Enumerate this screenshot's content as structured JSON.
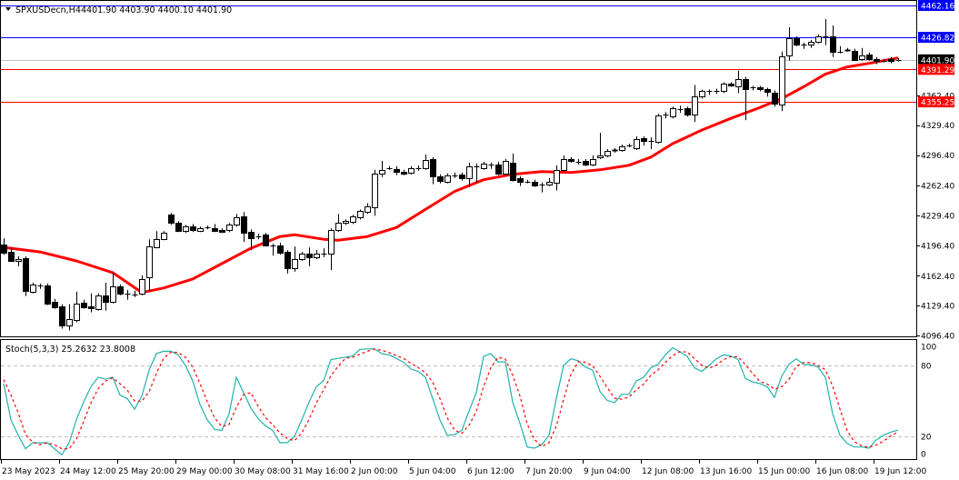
{
  "header": {
    "symbol": "SPXUSDecn,H4",
    "ohlc_text": "4401.90 4403.90 4400.10 4401.90",
    "menu_icon": "triangle-down-icon"
  },
  "indicator_header": {
    "label": "Stoch(5,3,3) 25.2632 23.8008"
  },
  "chart_data": [
    {
      "type": "candlestick",
      "symbol": "SPXUSDecn",
      "timeframe": "H4",
      "ylim": [
        4096.4,
        4470
      ],
      "y_ticks": [
        "4362.40",
        "4329.40",
        "4296.40",
        "4262.40",
        "4229.40",
        "4196.40",
        "4162.40",
        "4129.40",
        "4096.40"
      ],
      "y_tick_values": [
        4362.4,
        4329.4,
        4296.4,
        4262.4,
        4229.4,
        4196.4,
        4162.4,
        4129.4,
        4096.4
      ],
      "x_labels": [
        "23 May 2023",
        "24 May 12:00",
        "25 May 20:00",
        "29 May 00:00",
        "30 May 08:00",
        "31 May 16:00",
        "2 Jun 00:00",
        "5 Jun 04:00",
        "6 Jun 12:00",
        "7 Jun 20:00",
        "9 Jun 04:00",
        "12 Jun 08:00",
        "13 Jun 16:00",
        "15 Jun 00:00",
        "16 Jun 08:00",
        "19 Jun 12:00"
      ],
      "x_label_every_n_bars": 8,
      "colors": {
        "bull_body": "#ffffff",
        "bear_body": "#000000",
        "outline": "#000000",
        "ma": "#ff0000",
        "support": "#ff0000",
        "resistance": "#0000ff",
        "current": "#c0c0c0"
      },
      "horizontal_lines": [
        {
          "value": 4462.16,
          "label": "4462.16",
          "color": "#0000ff"
        },
        {
          "value": 4426.82,
          "label": "4426.82",
          "color": "#0000ff"
        },
        {
          "value": 4401.9,
          "label": "4401.90",
          "color": "#c0c0c0",
          "label_bg": "#000000"
        },
        {
          "value": 4391.29,
          "label": "4391.29",
          "color": "#ff0000"
        },
        {
          "value": 4355.25,
          "label": "4355.25",
          "color": "#ff0000"
        }
      ],
      "ohlc": [
        [
          4197,
          4204,
          4186,
          4188
        ],
        [
          4189,
          4194,
          4178,
          4179
        ],
        [
          4179,
          4184,
          4173,
          4181
        ],
        [
          4182,
          4184,
          4140,
          4146
        ],
        [
          4145,
          4155,
          4143,
          4153
        ],
        [
          4152,
          4154,
          4148,
          4152
        ],
        [
          4152,
          4154,
          4130,
          4132
        ],
        [
          4134,
          4137,
          4126,
          4128
        ],
        [
          4129,
          4131,
          4104,
          4108
        ],
        [
          4108,
          4131,
          4102,
          4115
        ],
        [
          4114,
          4145,
          4111,
          4132
        ],
        [
          4133,
          4136,
          4126,
          4128
        ],
        [
          4129,
          4143,
          4122,
          4127
        ],
        [
          4126,
          4143,
          4124,
          4141
        ],
        [
          4141,
          4155,
          4124,
          4134
        ],
        [
          4134,
          4166,
          4132,
          4151
        ],
        [
          4151,
          4153,
          4141,
          4143
        ],
        [
          4143,
          4147,
          4136,
          4143
        ],
        [
          4142,
          4146,
          4139,
          4142
        ],
        [
          4143,
          4163,
          4141,
          4159
        ],
        [
          4161,
          4203,
          4146,
          4195
        ],
        [
          4194,
          4212,
          4193,
          4203
        ],
        [
          4203,
          4212,
          4202,
          4210
        ],
        [
          4230,
          4232,
          4219,
          4221
        ],
        [
          4221,
          4223,
          4211,
          4212
        ],
        [
          4212,
          4219,
          4210,
          4217
        ],
        [
          4217,
          4220,
          4211,
          4213
        ],
        [
          4212,
          4217,
          4211,
          4215
        ],
        [
          4216,
          4218,
          4214,
          4216
        ],
        [
          4215,
          4220,
          4211,
          4212
        ],
        [
          4213,
          4215,
          4210,
          4211
        ],
        [
          4213,
          4221,
          4211,
          4219
        ],
        [
          4219,
          4231,
          4217,
          4227
        ],
        [
          4228,
          4233,
          4200,
          4210
        ],
        [
          4211,
          4214,
          4191,
          4204
        ],
        [
          4206,
          4209,
          4203,
          4206
        ],
        [
          4208,
          4210,
          4195,
          4196
        ],
        [
          4196,
          4198,
          4185,
          4196
        ],
        [
          4196,
          4199,
          4186,
          4188
        ],
        [
          4189,
          4191,
          4165,
          4171
        ],
        [
          4171,
          4195,
          4167,
          4181
        ],
        [
          4181,
          4189,
          4179,
          4187
        ],
        [
          4187,
          4194,
          4173,
          4183
        ],
        [
          4183,
          4191,
          4181,
          4187
        ],
        [
          4187,
          4193,
          4183,
          4187
        ],
        [
          4187,
          4215,
          4169,
          4213
        ],
        [
          4213,
          4231,
          4211,
          4221
        ],
        [
          4221,
          4225,
          4219,
          4223
        ],
        [
          4222,
          4230,
          4220,
          4228
        ],
        [
          4227,
          4236,
          4225,
          4234
        ],
        [
          4233,
          4243,
          4231,
          4239
        ],
        [
          4239,
          4280,
          4229,
          4276
        ],
        [
          4276,
          4290,
          4272,
          4280
        ],
        [
          4282,
          4284,
          4280,
          4282
        ],
        [
          4281,
          4284,
          4274,
          4278
        ],
        [
          4278,
          4280,
          4274,
          4276
        ],
        [
          4277,
          4284,
          4275,
          4282
        ],
        [
          4282,
          4285,
          4279,
          4282
        ],
        [
          4282,
          4297,
          4280,
          4291
        ],
        [
          4292,
          4294,
          4264,
          4273
        ],
        [
          4273,
          4275,
          4265,
          4268
        ],
        [
          4267,
          4276,
          4265,
          4274
        ],
        [
          4274,
          4277,
          4271,
          4274
        ],
        [
          4275,
          4277,
          4268,
          4271
        ],
        [
          4271,
          4288,
          4261,
          4284
        ],
        [
          4284,
          4287,
          4266,
          4284
        ],
        [
          4282,
          4289,
          4280,
          4287
        ],
        [
          4286,
          4288,
          4281,
          4286
        ],
        [
          4286,
          4289,
          4274,
          4276
        ],
        [
          4276,
          4292,
          4274,
          4290
        ],
        [
          4288,
          4298,
          4267,
          4269
        ],
        [
          4271,
          4273,
          4262,
          4267
        ],
        [
          4267,
          4269,
          4265,
          4267
        ],
        [
          4267,
          4269,
          4261,
          4263
        ],
        [
          4264,
          4266,
          4255,
          4264
        ],
        [
          4264,
          4271,
          4262,
          4267
        ],
        [
          4266,
          4285,
          4257,
          4280
        ],
        [
          4280,
          4296,
          4278,
          4292
        ],
        [
          4292,
          4294,
          4288,
          4290
        ],
        [
          4289,
          4292,
          4286,
          4289
        ],
        [
          4290,
          4292,
          4284,
          4286
        ],
        [
          4286,
          4296,
          4284,
          4292
        ],
        [
          4294,
          4321,
          4292,
          4296
        ],
        [
          4296,
          4303,
          4294,
          4301
        ],
        [
          4302,
          4304,
          4299,
          4301
        ],
        [
          4302,
          4308,
          4300,
          4306
        ],
        [
          4307,
          4309,
          4305,
          4307
        ],
        [
          4304,
          4317,
          4302,
          4314
        ],
        [
          4315,
          4317,
          4307,
          4312
        ],
        [
          4312,
          4316,
          4303,
          4312
        ],
        [
          4311,
          4342,
          4309,
          4340
        ],
        [
          4341,
          4344,
          4337,
          4341
        ],
        [
          4339,
          4350,
          4337,
          4348
        ],
        [
          4347,
          4351,
          4343,
          4347
        ],
        [
          4348,
          4350,
          4339,
          4341
        ],
        [
          4341,
          4374,
          4333,
          4361
        ],
        [
          4361,
          4369,
          4359,
          4367
        ],
        [
          4367,
          4369,
          4363,
          4367
        ],
        [
          4367,
          4370,
          4364,
          4367
        ],
        [
          4367,
          4377,
          4365,
          4375
        ],
        [
          4375,
          4377,
          4372,
          4373
        ],
        [
          4373,
          4390,
          4365,
          4381
        ],
        [
          4381,
          4383,
          4335,
          4370
        ],
        [
          4371,
          4373,
          4368,
          4371
        ],
        [
          4371,
          4373,
          4367,
          4369
        ],
        [
          4369,
          4371,
          4361,
          4366
        ],
        [
          4365,
          4368,
          4350,
          4353
        ],
        [
          4353,
          4411,
          4345,
          4406
        ],
        [
          4407,
          4438,
          4401,
          4426
        ],
        [
          4426,
          4428,
          4417,
          4419
        ],
        [
          4419,
          4421,
          4414,
          4419
        ],
        [
          4419,
          4424,
          4415,
          4422
        ],
        [
          4422,
          4430,
          4420,
          4428
        ],
        [
          4428,
          4447,
          4418,
          4428
        ],
        [
          4428,
          4440,
          4405,
          4411
        ],
        [
          4411,
          4417,
          4409,
          4411
        ],
        [
          4413,
          4415,
          4411,
          4412
        ],
        [
          4412,
          4414,
          4401,
          4402
        ],
        [
          4403,
          4415,
          4401,
          4407
        ],
        [
          4408,
          4410,
          4401,
          4403
        ],
        [
          4403,
          4405,
          4397,
          4401
        ],
        [
          4401,
          4403,
          4399,
          4401
        ],
        [
          4403,
          4405,
          4398,
          4401
        ],
        [
          4401.9,
          4403.9,
          4400.1,
          4401.9
        ]
      ],
      "moving_average": {
        "bar_index": [
          0,
          5,
          10,
          15,
          19,
          22,
          26,
          30,
          34,
          38,
          40,
          44,
          46,
          50,
          54,
          58,
          62,
          66,
          70,
          74,
          78,
          82,
          86,
          89,
          92,
          96,
          100,
          104,
          107,
          110,
          113,
          116,
          119,
          123
        ],
        "values": [
          4194,
          4189,
          4179,
          4166,
          4144,
          4149,
          4159,
          4176,
          4193,
          4206,
          4208,
          4203,
          4202,
          4206,
          4216,
          4236,
          4256,
          4269,
          4275,
          4278,
          4277,
          4280,
          4285,
          4294,
          4309,
          4324,
          4337,
          4349,
          4359,
          4372,
          4386,
          4394,
          4398,
          4404
        ]
      }
    },
    {
      "type": "line",
      "name": "Stoch(5,3,3)",
      "ylim": [
        0,
        100
      ],
      "y_ticks": [
        "100",
        "80",
        "20",
        "0"
      ],
      "y_tick_values": [
        100,
        80,
        20,
        0
      ],
      "levels": [
        80,
        20
      ],
      "colors": {
        "main": "#20b2aa",
        "signal": "#ff0000",
        "levels": "#c0c0c0"
      },
      "series": [
        {
          "name": "main",
          "last": "25.2632",
          "values": [
            64.6,
            34,
            21,
            9.5,
            14.6,
            14.6,
            14.6,
            9.5,
            4.4,
            14.6,
            34,
            49,
            62,
            70,
            68.5,
            70,
            55,
            52,
            43,
            54,
            76,
            90,
            92,
            92,
            89,
            80,
            67,
            47,
            34,
            26,
            25,
            39,
            70,
            57,
            44,
            35,
            29,
            25,
            14.6,
            14.6,
            20,
            34,
            49,
            62,
            67,
            85,
            86,
            87,
            88,
            93.6,
            94,
            94,
            90,
            89,
            86,
            82.6,
            77,
            75,
            70,
            52,
            34,
            21,
            21.5,
            25,
            41.5,
            57,
            87.7,
            90,
            83,
            83,
            49,
            31,
            11,
            10,
            13,
            21,
            52,
            80,
            85.6,
            84,
            78.7,
            76,
            58,
            50.5,
            48.5,
            55.6,
            55.6,
            67,
            70,
            78,
            81,
            89,
            95,
            91.5,
            87.7,
            78,
            75,
            80,
            85.6,
            89,
            88,
            85,
            69,
            66,
            64.6,
            62,
            53,
            71,
            81,
            85.6,
            81,
            80.5,
            78.7,
            70,
            39,
            21,
            14,
            11,
            11,
            10,
            17,
            21,
            23.6,
            25.26
          ]
        },
        {
          "name": "signal",
          "last": "23.8008",
          "values": [
            68,
            55,
            39.9,
            21.5,
            15,
            12.9,
            14.6,
            12.9,
            9.5,
            9.5,
            17.7,
            32.5,
            48.3,
            60.3,
            66.8,
            69.5,
            64.5,
            59,
            50,
            49.7,
            57.7,
            73.3,
            86,
            91.3,
            91,
            87,
            78.7,
            64.7,
            49.3,
            35.7,
            28.3,
            30,
            44.7,
            55.3,
            57,
            45.3,
            36,
            29.7,
            22.9,
            18.1,
            16.4,
            22.9,
            34.3,
            48.3,
            59.3,
            71.3,
            79.3,
            86,
            87,
            89.5,
            91.9,
            93.9,
            92.7,
            91,
            88.3,
            85.9,
            81.9,
            78.2,
            74,
            65.7,
            52,
            35.7,
            25.5,
            22.5,
            29.3,
            41.2,
            62.1,
            78.2,
            86.9,
            85.3,
            71.7,
            54.3,
            30.3,
            17.3,
            11.3,
            14.7,
            28.7,
            51,
            72.5,
            83.2,
            82.8,
            79.6,
            70.9,
            61.5,
            52.3,
            51.5,
            53.2,
            59.4,
            64.2,
            71.7,
            76.3,
            82.7,
            88.3,
            91.8,
            91.4,
            85.7,
            80.2,
            77.7,
            80.2,
            84.9,
            87.5,
            87.3,
            80.7,
            73.3,
            66.5,
            64.2,
            59.9,
            62,
            68.3,
            79.2,
            82.5,
            82.4,
            80.1,
            76.4,
            62.6,
            43.3,
            24.7,
            15.3,
            12,
            10.7,
            12.7,
            16,
            20.5,
            23.8
          ]
        }
      ]
    }
  ]
}
